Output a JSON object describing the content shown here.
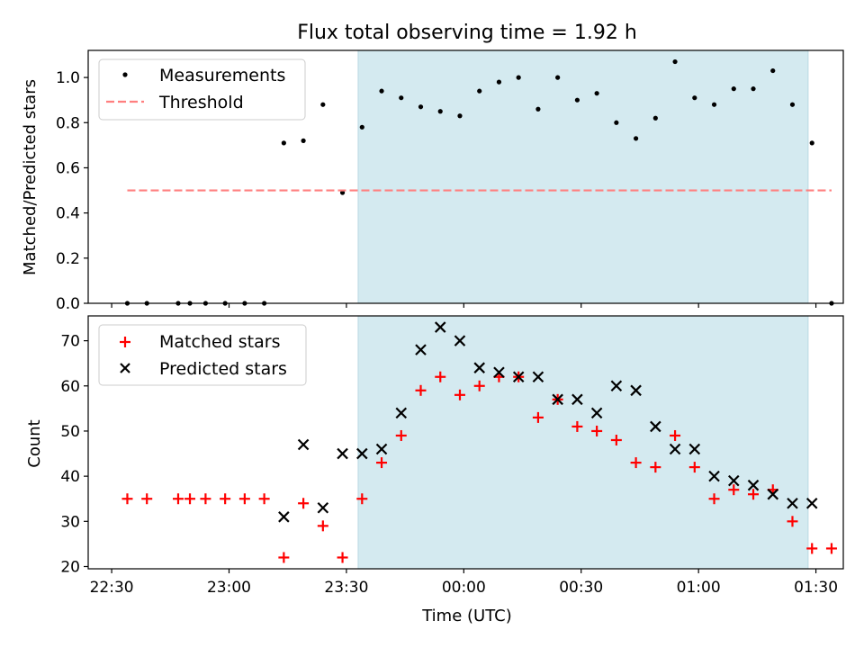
{
  "figure": {
    "title": "Flux total observing time = 1.92 h",
    "xlabel": "Time (UTC)"
  },
  "chart_data": [
    {
      "type": "scatter",
      "panel": "top",
      "ylabel": "Matched/Predicted stars",
      "xlim": [
        "22:24",
        "01:37"
      ],
      "ylim": [
        0,
        1.12
      ],
      "y_ticks": [
        "0.0",
        "0.2",
        "0.4",
        "0.6",
        "0.8",
        "1.0"
      ],
      "y_tick_values": [
        0,
        0.2,
        0.4,
        0.6,
        0.8,
        1.0
      ],
      "legend_position": "upper-left",
      "shaded_interval": {
        "start": "23:33",
        "end": "01:28",
        "color": "#d4eaf0"
      },
      "series": [
        {
          "name": "Measurements",
          "marker": "dot",
          "color": "#000000",
          "x": [
            "22:34",
            "22:39",
            "22:47",
            "22:50",
            "22:54",
            "22:59",
            "23:04",
            "23:09",
            "23:14",
            "23:19",
            "23:24",
            "23:29",
            "23:34",
            "23:39",
            "23:44",
            "23:49",
            "23:54",
            "23:59",
            "00:04",
            "00:09",
            "00:14",
            "00:19",
            "00:24",
            "00:29",
            "00:34",
            "00:39",
            "00:44",
            "00:49",
            "00:54",
            "00:59",
            "01:04",
            "01:09",
            "01:14",
            "01:19",
            "01:24",
            "01:29",
            "01:34"
          ],
          "y": [
            0,
            0,
            0,
            0,
            0,
            0,
            0,
            0,
            0.71,
            0.72,
            0.88,
            0.49,
            0.78,
            0.94,
            0.91,
            0.87,
            0.85,
            0.83,
            0.94,
            0.98,
            1.0,
            0.86,
            1.0,
            0.9,
            0.93,
            0.8,
            0.73,
            0.82,
            1.07,
            0.91,
            0.88,
            0.95,
            0.95,
            1.03,
            0.88,
            0.71,
            0
          ]
        },
        {
          "name": "Threshold",
          "style": "dashed",
          "color": "#ff7f7f",
          "x": [
            "22:34",
            "01:34"
          ],
          "y": [
            0.5,
            0.5
          ]
        }
      ]
    },
    {
      "type": "scatter",
      "panel": "bottom",
      "ylabel": "Count",
      "xlabel": "Time (UTC)",
      "xlim": [
        "22:24",
        "01:37"
      ],
      "ylim": [
        19.5,
        75.5
      ],
      "y_ticks": [
        "20",
        "30",
        "40",
        "50",
        "60",
        "70"
      ],
      "y_tick_values": [
        20,
        30,
        40,
        50,
        60,
        70
      ],
      "x_ticks": [
        "22:30",
        "23:00",
        "23:30",
        "00:00",
        "00:30",
        "01:00",
        "01:30"
      ],
      "x_tick_values": [
        "22:30",
        "23:00",
        "23:30",
        "00:00",
        "00:30",
        "01:00",
        "01:30"
      ],
      "legend_position": "upper-left",
      "shaded_interval": {
        "start": "23:33",
        "end": "01:28",
        "color": "#d4eaf0"
      },
      "series": [
        {
          "name": "Matched stars",
          "marker": "plus",
          "color": "#ff0000",
          "x": [
            "22:34",
            "22:39",
            "22:47",
            "22:50",
            "22:54",
            "22:59",
            "23:04",
            "23:09",
            "23:14",
            "23:19",
            "23:24",
            "23:29",
            "23:34",
            "23:39",
            "23:44",
            "23:49",
            "23:54",
            "23:59",
            "00:04",
            "00:09",
            "00:14",
            "00:19",
            "00:24",
            "00:29",
            "00:34",
            "00:39",
            "00:44",
            "00:49",
            "00:54",
            "00:59",
            "01:04",
            "01:09",
            "01:14",
            "01:19",
            "01:24",
            "01:29",
            "01:34"
          ],
          "y": [
            35,
            35,
            35,
            35,
            35,
            35,
            35,
            35,
            22,
            34,
            29,
            22,
            35,
            43,
            49,
            59,
            62,
            58,
            60,
            62,
            62,
            53,
            57,
            51,
            50,
            48,
            43,
            42,
            49,
            42,
            35,
            37,
            36,
            37,
            30,
            24,
            24
          ]
        },
        {
          "name": "Predicted stars",
          "marker": "x",
          "color": "#000000",
          "x": [
            "23:14",
            "23:19",
            "23:24",
            "23:29",
            "23:34",
            "23:39",
            "23:44",
            "23:49",
            "23:54",
            "23:59",
            "00:04",
            "00:09",
            "00:14",
            "00:19",
            "00:24",
            "00:29",
            "00:34",
            "00:39",
            "00:44",
            "00:49",
            "00:54",
            "00:59",
            "01:04",
            "01:09",
            "01:14",
            "01:19",
            "01:24",
            "01:29"
          ],
          "y": [
            31,
            47,
            33,
            45,
            45,
            46,
            54,
            68,
            73,
            70,
            64,
            63,
            62,
            62,
            57,
            57,
            54,
            60,
            59,
            51,
            46,
            46,
            40,
            39,
            38,
            36,
            34,
            34
          ]
        }
      ]
    }
  ]
}
